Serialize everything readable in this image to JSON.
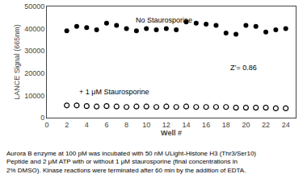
{
  "chart_data": {
    "type": "scatter",
    "xlabel": "Well #",
    "ylabel": "LANCE Signal (665nm)",
    "x": [
      2,
      3,
      4,
      5,
      6,
      7,
      8,
      9,
      10,
      11,
      12,
      13,
      14,
      15,
      16,
      17,
      18,
      19,
      20,
      21,
      22,
      23,
      24
    ],
    "series": [
      {
        "values": [
          39000,
          41000,
          40500,
          39500,
          42500,
          41500,
          40000,
          39000,
          40000,
          39500,
          40000,
          39500,
          43000,
          42500,
          42000,
          41500,
          38000,
          37500,
          41500,
          41000,
          38500,
          39500,
          40000
        ],
        "color": "#000000",
        "marker": "filled"
      },
      {
        "values": [
          5500,
          5500,
          5200,
          5000,
          5200,
          5000,
          4800,
          5000,
          5000,
          4800,
          5000,
          4800,
          5000,
          4800,
          4800,
          4800,
          4800,
          4500,
          4500,
          4500,
          4500,
          4200,
          4200
        ],
        "color": "#000000",
        "marker": "open"
      }
    ],
    "xlim": [
      0,
      25
    ],
    "ylim": [
      0,
      50000
    ],
    "xticks": [
      0,
      2,
      4,
      6,
      8,
      10,
      12,
      14,
      16,
      18,
      20,
      22,
      24
    ],
    "yticks": [
      0,
      10000,
      20000,
      30000,
      40000,
      50000
    ],
    "grid": false,
    "annotations": [
      "No Staurosporine",
      "+ 1 μM Staurosporine",
      "Z’= 0.86"
    ],
    "caption": [
      "Aurora B enzyme at 100 pM was incubated with 50 nM ULight-Histone H3 (Thr3/Ser10)",
      "Peptide and 2 μM ATP with or without 1 μM staurosporine (final concentrations in",
      "2% DMSO). Kinase reactions were terminated after 60 min by the addition of EDTA."
    ]
  }
}
